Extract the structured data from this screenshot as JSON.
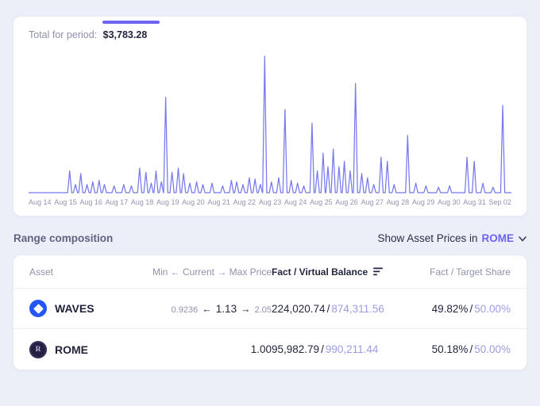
{
  "colors": {
    "page_bg": "#edeff8",
    "accent": "#6c63f0",
    "chart_line": "#7678ee",
    "muted_value": "#9a9de4",
    "dark_text": "#23263e",
    "header_muted": "#8f92ad"
  },
  "chart_card": {
    "total_label": "Total for period:",
    "total_value": "$3,783.28"
  },
  "chart_data": {
    "type": "line",
    "title": "Total for period",
    "grid": false,
    "y_axis_visible": false,
    "legend": "none",
    "x_ticks": [
      "Aug 14",
      "Aug 15",
      "Aug 16",
      "Aug 17",
      "Aug 18",
      "Aug 19",
      "Aug 20",
      "Aug 21",
      "Aug 22",
      "Aug 23",
      "Aug 24",
      "Aug 25",
      "Aug 26",
      "Aug 27",
      "Aug 28",
      "Aug 29",
      "Aug 30",
      "Aug 31",
      "Sep 02"
    ],
    "series": [
      {
        "name": "period-activity-spikes",
        "encoding": "spikes as [x_percent_of_time_axis, height_percent_of_max]",
        "baseline": 0,
        "spikes": [
          [
            8.5,
            16
          ],
          [
            9.7,
            6
          ],
          [
            10.8,
            14
          ],
          [
            12.1,
            6
          ],
          [
            13.3,
            8
          ],
          [
            14.6,
            9
          ],
          [
            15.7,
            6
          ],
          [
            17.7,
            5
          ],
          [
            19.7,
            6
          ],
          [
            21.3,
            5
          ],
          [
            23,
            18
          ],
          [
            24.3,
            15
          ],
          [
            25.4,
            7
          ],
          [
            26.4,
            16
          ],
          [
            27.5,
            8
          ],
          [
            28.4,
            70
          ],
          [
            29.7,
            15
          ],
          [
            31,
            18
          ],
          [
            32.1,
            14
          ],
          [
            33.4,
            7
          ],
          [
            34.8,
            8
          ],
          [
            36.1,
            6
          ],
          [
            38,
            7
          ],
          [
            40.2,
            5
          ],
          [
            42,
            9
          ],
          [
            43.1,
            8
          ],
          [
            44.4,
            6
          ],
          [
            45.7,
            11
          ],
          [
            46.9,
            10
          ],
          [
            48,
            6
          ],
          [
            48.9,
            100
          ],
          [
            50.3,
            8
          ],
          [
            51.8,
            11
          ],
          [
            53.1,
            61
          ],
          [
            54.4,
            9
          ],
          [
            55.7,
            7
          ],
          [
            57,
            5
          ],
          [
            58.7,
            51
          ],
          [
            59.8,
            16
          ],
          [
            61,
            29
          ],
          [
            62,
            19
          ],
          [
            63.1,
            32
          ],
          [
            64.3,
            19
          ],
          [
            65.4,
            23
          ],
          [
            66.6,
            16
          ],
          [
            67.7,
            80
          ],
          [
            69,
            14
          ],
          [
            70.2,
            11
          ],
          [
            71.5,
            6
          ],
          [
            73,
            26
          ],
          [
            74.3,
            23
          ],
          [
            75.7,
            6
          ],
          [
            78.5,
            42
          ],
          [
            80.2,
            7
          ],
          [
            82.3,
            5
          ],
          [
            84.9,
            4
          ],
          [
            87.2,
            5
          ],
          [
            90.8,
            26
          ],
          [
            92.3,
            23
          ],
          [
            94.1,
            7
          ],
          [
            96.2,
            4
          ],
          [
            98.2,
            64
          ]
        ]
      }
    ]
  },
  "range_section": {
    "title": "Range composition",
    "show_prices_label": "Show Asset Prices in",
    "show_prices_value": "ROME"
  },
  "table": {
    "headers": [
      "Asset",
      "Min ← Current → Max Price",
      "Fact / Virtual Balance",
      "Fact / Target Share"
    ],
    "symbols": {
      "arrow_left": "←",
      "arrow_right": "→",
      "separator": "/"
    },
    "icons": {
      "rome_monogram": "R"
    },
    "rows": [
      {
        "asset": "WAVES",
        "min_price": "0.9236",
        "current_price": "1.13",
        "max_price": "2.05",
        "fact_balance": "224,020.74",
        "virtual_balance": "874,311.56",
        "fact_share": "49.82%",
        "target_share": "50.00%"
      },
      {
        "asset": "ROME",
        "current_price": "1.00",
        "fact_balance": "95,982.79",
        "virtual_balance": "990,211.44",
        "fact_share": "50.18%",
        "target_share": "50.00%"
      }
    ]
  }
}
